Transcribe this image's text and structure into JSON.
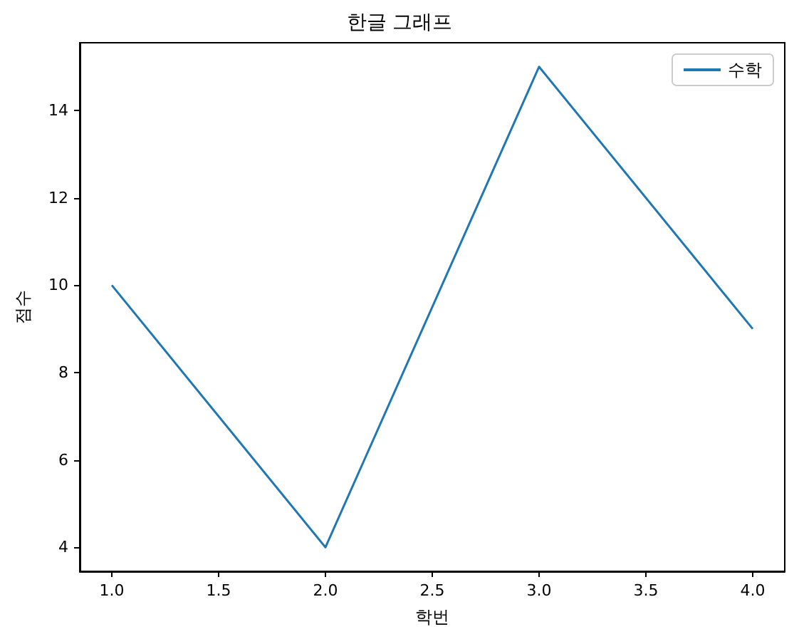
{
  "chart_data": {
    "type": "line",
    "title": "한글 그래프",
    "xlabel": "학번",
    "ylabel": "점수",
    "x": [
      1,
      2,
      3,
      4
    ],
    "series": [
      {
        "name": "수학",
        "color": "#1f77b4",
        "values": [
          10,
          4,
          15,
          9
        ]
      }
    ],
    "xlim": [
      0.85,
      4.15
    ],
    "xticks": [
      {
        "value": 1,
        "label": "1.0"
      },
      {
        "value": 1.5,
        "label": "1.5"
      },
      {
        "value": 2,
        "label": "2.0"
      },
      {
        "value": 2.5,
        "label": "2.5"
      },
      {
        "value": 3,
        "label": "3.0"
      },
      {
        "value": 3.5,
        "label": "3.5"
      },
      {
        "value": 4,
        "label": "4.0"
      }
    ],
    "ylim": [
      3.45,
      15.55
    ],
    "yticks": [
      4,
      6,
      8,
      10,
      12,
      14
    ],
    "legend": "top right",
    "marker": "none",
    "line_style": "solid"
  }
}
